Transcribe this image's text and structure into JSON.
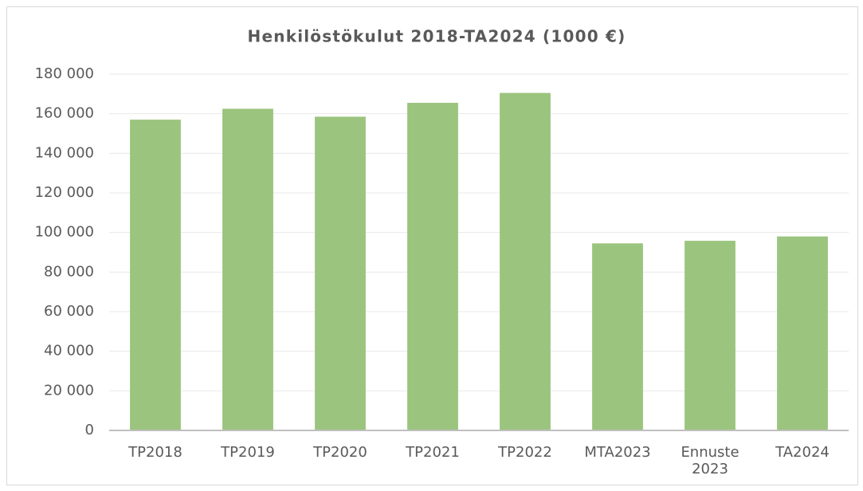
{
  "chart_data": {
    "type": "bar",
    "title": "Henkilöstökulut 2018-TA2024 (1000 €)",
    "categories": [
      "TP2018",
      "TP2019",
      "TP2020",
      "TP2021",
      "TP2022",
      "MTA2023",
      "Ennuste 2023",
      "TA2024"
    ],
    "values": [
      157000,
      162500,
      158500,
      165500,
      170500,
      94500,
      95800,
      98000
    ],
    "color": "#9bc47e",
    "ylim": [
      0,
      180000
    ],
    "yticks": [
      0,
      {
        "value": 20000,
        "label": "20 000"
      },
      {
        "value": 40000,
        "label": "40 000"
      },
      {
        "value": 60000,
        "label": "60 000"
      },
      {
        "value": 80000,
        "label": "80 000"
      },
      {
        "value": 100000,
        "label": "100 000"
      },
      {
        "value": 120000,
        "label": "120 000"
      },
      {
        "value": 140000,
        "label": "140 000"
      },
      {
        "value": 160000,
        "label": "160 000"
      },
      {
        "value": 180000,
        "label": "180 000"
      }
    ],
    "grid": true
  }
}
